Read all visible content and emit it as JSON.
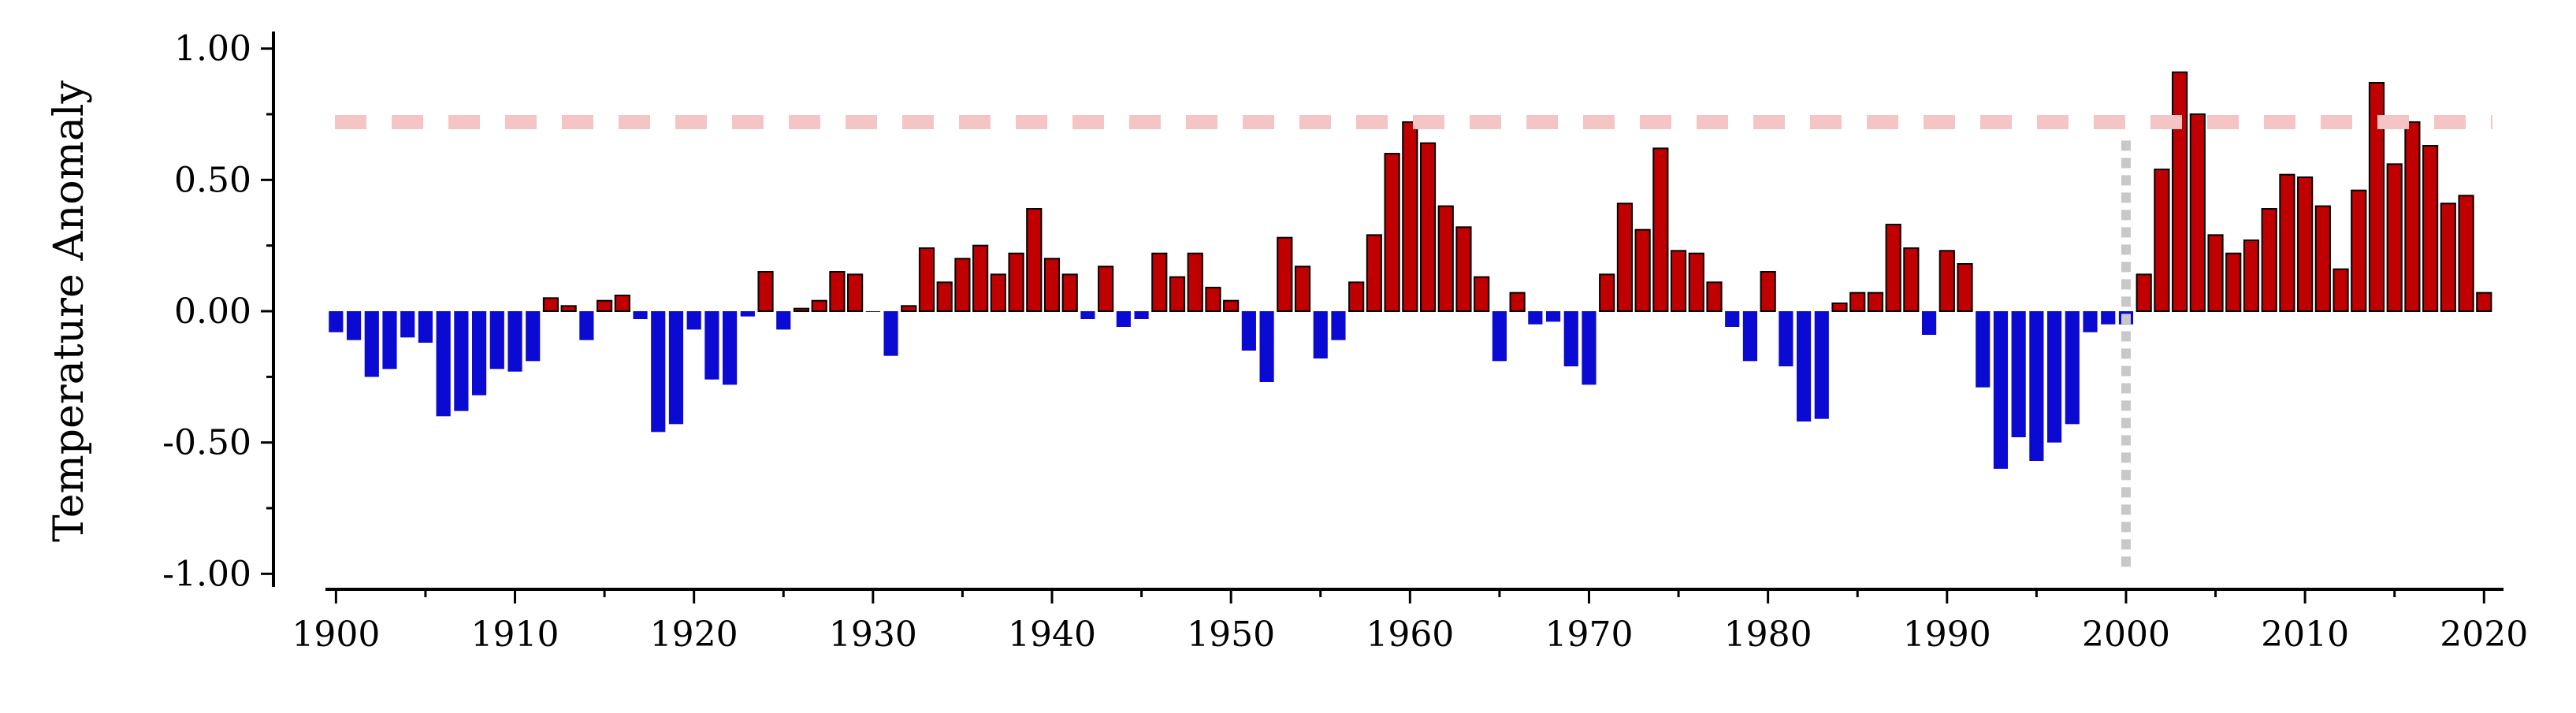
{
  "chart_data": {
    "type": "bar",
    "title": "",
    "xlabel": "",
    "ylabel": "Temperature Anomaly",
    "xlim": [
      1899.5,
      2021
    ],
    "ylim": [
      -1.05,
      1.05
    ],
    "x_ticks": [
      1900,
      1910,
      1920,
      1930,
      1940,
      1950,
      1960,
      1970,
      1980,
      1990,
      2000,
      2010,
      2020
    ],
    "x_tick_labels": [
      "1900",
      "1910",
      "1920",
      "1930",
      "1940",
      "1950",
      "1960",
      "1970",
      "1980",
      "1990",
      "2000",
      "2010",
      "2020"
    ],
    "y_ticks": [
      -1.0,
      -0.5,
      0.0,
      0.5,
      1.0
    ],
    "y_tick_labels": [
      "-1.00",
      "-0.50",
      "0.00",
      "0.50",
      "1.00"
    ],
    "grid": false,
    "legend": "none",
    "colors": {
      "positive": "#c00000",
      "negative": "#0a0ad2",
      "bar_edge": "#000000",
      "reference_line": "#f5c4c4",
      "vertical_marker": "#c8c8c8"
    },
    "reference_line": {
      "y": 0.72,
      "style": "dashed"
    },
    "vertical_marker": {
      "x": 2000,
      "y_range": [
        -1.0,
        0.65
      ],
      "style": "dotted"
    },
    "x": [
      1900,
      1901,
      1902,
      1903,
      1904,
      1905,
      1906,
      1907,
      1908,
      1909,
      1910,
      1911,
      1912,
      1913,
      1914,
      1915,
      1916,
      1917,
      1918,
      1919,
      1920,
      1921,
      1922,
      1923,
      1924,
      1925,
      1926,
      1927,
      1928,
      1929,
      1930,
      1931,
      1932,
      1933,
      1934,
      1935,
      1936,
      1937,
      1938,
      1939,
      1940,
      1941,
      1942,
      1943,
      1944,
      1945,
      1946,
      1947,
      1948,
      1949,
      1950,
      1951,
      1952,
      1953,
      1954,
      1955,
      1956,
      1957,
      1958,
      1959,
      1960,
      1961,
      1962,
      1963,
      1964,
      1965,
      1966,
      1967,
      1968,
      1969,
      1970,
      1971,
      1972,
      1973,
      1974,
      1975,
      1976,
      1977,
      1978,
      1979,
      1980,
      1981,
      1982,
      1983,
      1984,
      1985,
      1986,
      1987,
      1988,
      1989,
      1990,
      1991,
      1992,
      1993,
      1994,
      1995,
      1996,
      1997,
      1998,
      1999,
      2000,
      2001,
      2002,
      2003,
      2004,
      2005,
      2006,
      2007,
      2008,
      2009,
      2010,
      2011,
      2012,
      2013,
      2014,
      2015,
      2016,
      2017,
      2018,
      2019,
      2020
    ],
    "values": [
      -0.08,
      -0.11,
      -0.25,
      -0.22,
      -0.1,
      -0.12,
      -0.4,
      -0.38,
      -0.32,
      -0.22,
      -0.23,
      -0.19,
      0.05,
      0.02,
      -0.11,
      0.04,
      0.06,
      -0.03,
      -0.46,
      -0.43,
      -0.07,
      -0.26,
      -0.28,
      -0.02,
      0.15,
      -0.07,
      0.01,
      0.04,
      0.15,
      0.14,
      0.0,
      -0.17,
      0.02,
      0.24,
      0.11,
      0.2,
      0.25,
      0.14,
      0.22,
      0.39,
      0.2,
      0.14,
      -0.03,
      0.17,
      -0.06,
      -0.03,
      0.22,
      0.13,
      0.22,
      0.09,
      0.04,
      -0.15,
      -0.27,
      0.28,
      0.17,
      -0.18,
      -0.11,
      0.11,
      0.29,
      0.6,
      0.72,
      0.64,
      0.4,
      0.32,
      0.13,
      -0.19,
      0.07,
      -0.05,
      -0.04,
      -0.21,
      -0.28,
      0.14,
      0.41,
      0.31,
      0.62,
      0.23,
      0.22,
      0.11,
      -0.06,
      -0.19,
      0.15,
      -0.21,
      -0.42,
      -0.41,
      0.03,
      0.07,
      0.07,
      0.33,
      0.24,
      -0.09,
      0.23,
      0.18,
      -0.29,
      -0.6,
      -0.48,
      -0.57,
      -0.5,
      -0.43,
      -0.08,
      -0.05,
      -0.05,
      0.14,
      0.54,
      0.91,
      0.75,
      0.29,
      0.22,
      0.27,
      0.39,
      0.52,
      0.51,
      0.4,
      0.16,
      0.46,
      0.87,
      0.56,
      0.72,
      0.63,
      0.41,
      0.44,
      0.07
    ]
  }
}
